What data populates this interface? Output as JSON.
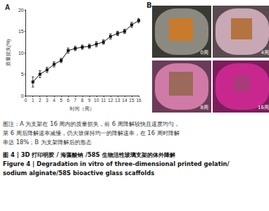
{
  "chart_data": {
    "type": "line",
    "title": "A",
    "x": [
      1,
      2,
      3,
      4,
      5,
      6,
      7,
      8,
      9,
      10,
      11,
      12,
      13,
      14,
      15,
      16
    ],
    "values": [
      3.2,
      5.0,
      6.0,
      7.3,
      8.2,
      10.5,
      11.0,
      11.3,
      11.5,
      12.0,
      12.5,
      13.8,
      14.5,
      15.0,
      16.5,
      17.5
    ],
    "errors": [
      1.2,
      0.8,
      0.6,
      0.6,
      0.5,
      0.6,
      0.5,
      0.5,
      0.5,
      0.6,
      0.5,
      0.6,
      0.5,
      0.5,
      0.6,
      0.5
    ],
    "color": "#111111",
    "marker": "square",
    "line_style": "solid",
    "x_label": "时间（周）",
    "y_label": "质量损失(%)",
    "xlim": [
      0,
      16
    ],
    "xticks": [
      0,
      1,
      2,
      3,
      4,
      5,
      6,
      7,
      8,
      9,
      10,
      11,
      12,
      13,
      14,
      15,
      16
    ],
    "ylim": [
      0,
      20
    ],
    "yticks": [
      0,
      5,
      10,
      15,
      20
    ],
    "grid": false
  },
  "panel_b": {
    "label": "B",
    "photos": [
      "0周",
      "4周",
      "8周",
      "16周"
    ]
  },
  "caption": {
    "note": [
      "图注：A 为支架在 16 周内的质量损失，前 6 周降解较快且速度均匀，",
      "第 6 周后降解速率减慢，仍大致保持均一的降解速率，在 16 周时降解",
      "率达 18%；B 为支架降解后的形态"
    ],
    "title_zh": "图 4 | 3D 打印明胶 / 海藻酸钠 /58S 生物活性玻璃支架的体外降解",
    "title_en": [
      "Figure 4 | Degradation in vitro of three-dimensional printed gelatin/",
      "sodium alginate/58S bioactive glass scaffolds"
    ]
  }
}
